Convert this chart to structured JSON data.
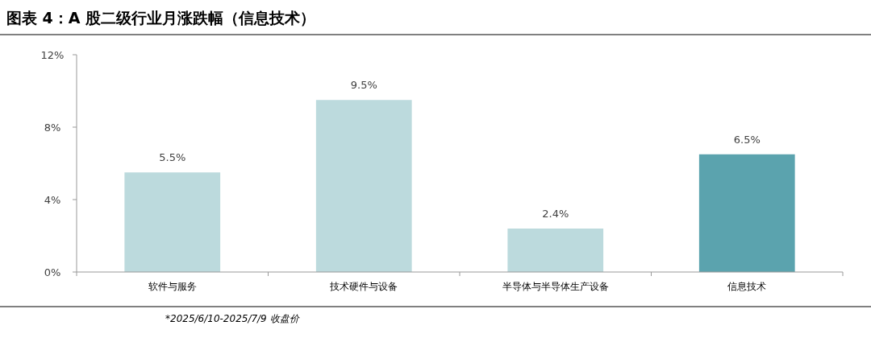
{
  "chart_data": {
    "type": "bar",
    "title": "图表 4：A 股二级行业月涨跌幅（信息技术）",
    "categories": [
      "软件与服务",
      "技术硬件与设备",
      "半导体与半导体生产设备",
      "信息技术"
    ],
    "values": [
      5.5,
      9.5,
      2.4,
      6.5
    ],
    "colors": [
      "#bcdadd",
      "#bcdadd",
      "#bcdadd",
      "#5ba3ae"
    ],
    "value_labels": [
      "5.5%",
      "9.5%",
      "2.4%",
      "6.5%"
    ],
    "ylim": [
      0,
      12
    ],
    "yticks": [
      {
        "value": 0,
        "label": "0%"
      },
      {
        "value": 4,
        "label": "4%"
      },
      {
        "value": 8,
        "label": "8%"
      },
      {
        "value": 12,
        "label": "12%"
      }
    ],
    "grid": false,
    "annotations": [
      "*2025/6/10-2025/7/9 收盘价"
    ]
  }
}
